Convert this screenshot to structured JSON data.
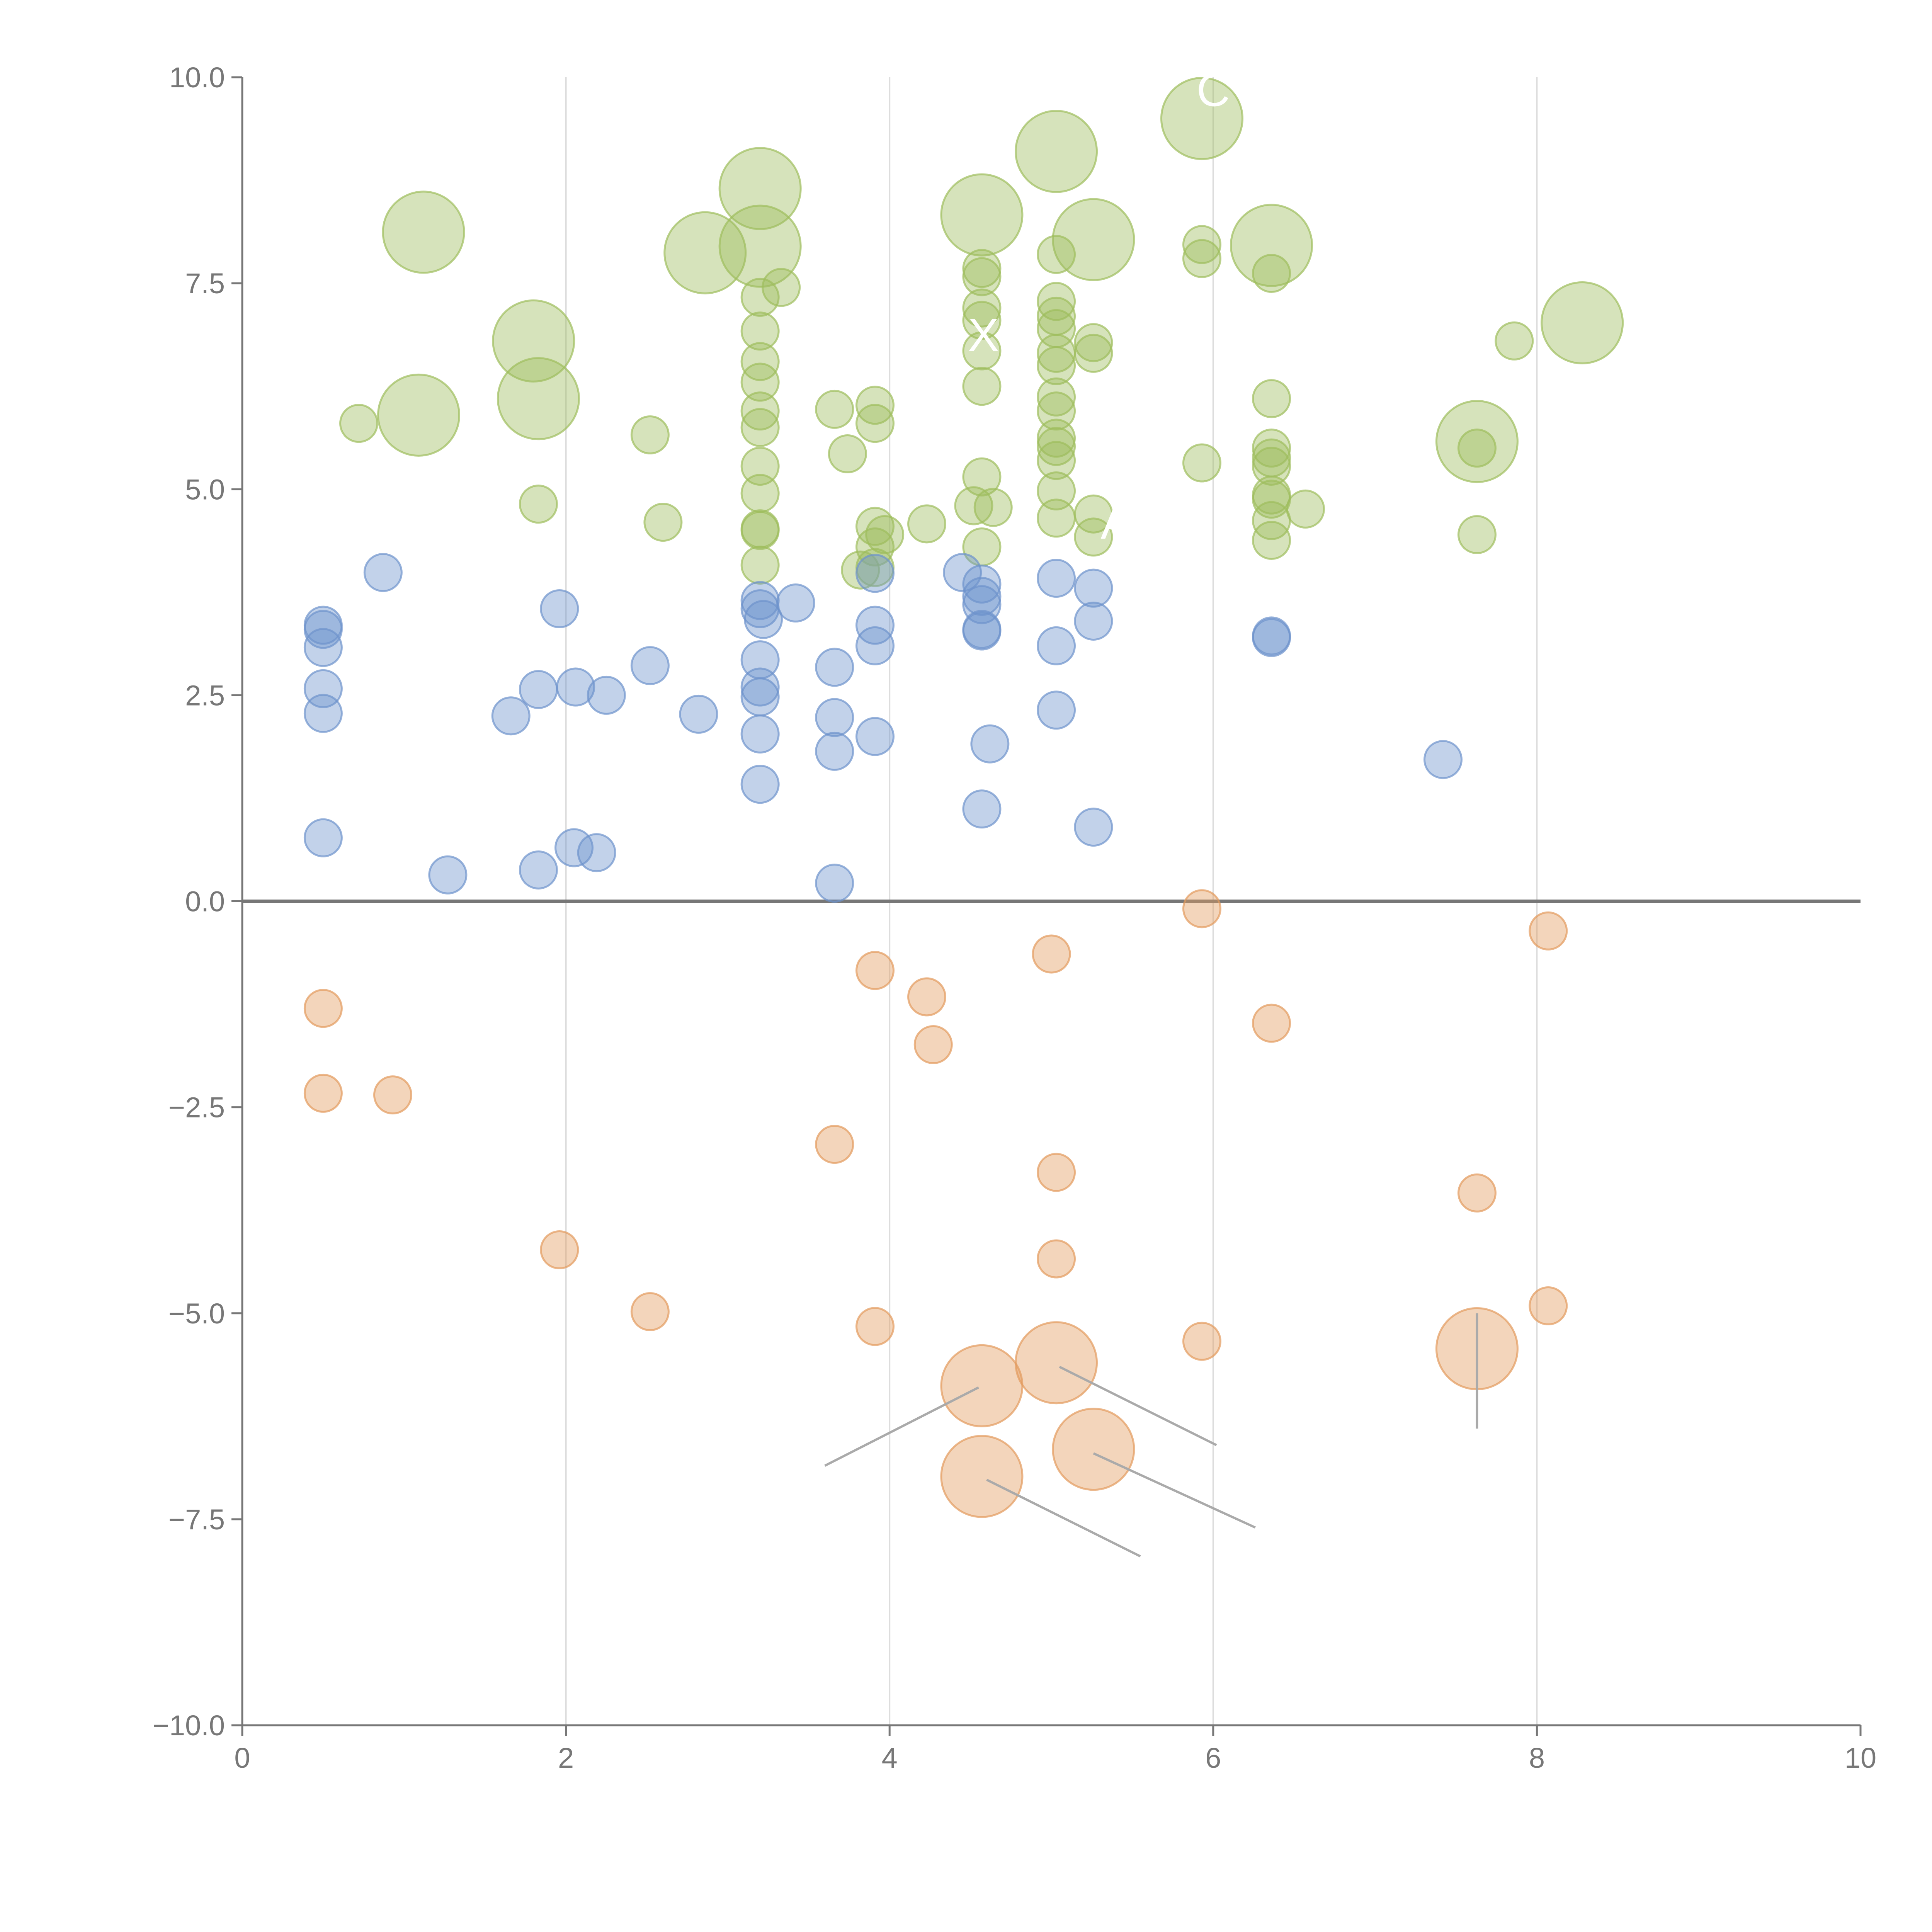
{
  "chart_data": {
    "type": "scatter",
    "title": "",
    "xlabel": "",
    "ylabel": "",
    "xlim": [
      0,
      10
    ],
    "ylim": [
      -10,
      10
    ],
    "grid": "vertical lines at x = 2, 4, 6, 8",
    "x_ticks": [
      "0",
      "2",
      "4",
      "6",
      "8",
      "10"
    ],
    "y_ticks": [
      "10.0",
      "7.5",
      "5.0",
      "2.5",
      "0.0",
      "−2.5",
      "−5.0",
      "−7.5",
      "−10.0"
    ],
    "y_tick_values": [
      10,
      7.5,
      5,
      2.5,
      0,
      -2.5,
      -5,
      -7.5,
      -10
    ],
    "x_tick_values": [
      0,
      2,
      4,
      6,
      8,
      10
    ],
    "reference_line": 0,
    "colors": {
      "green": "#9ebd5c",
      "blue": "#6e93cc",
      "orange": "#e39a5c",
      "axis": "#777777",
      "grid": "#dddddd"
    },
    "series": [
      {
        "name": "high",
        "color": "green",
        "points": [
          [
            1.12,
            8.12,
            3
          ],
          [
            2.86,
            7.87,
            3
          ],
          [
            3.2,
            8.65,
            3
          ],
          [
            3.2,
            7.95,
            3
          ],
          [
            4.57,
            8.33,
            3
          ],
          [
            5.03,
            9.1,
            3
          ],
          [
            5.26,
            8.03,
            3
          ],
          [
            5.93,
            9.5,
            3
          ],
          [
            6.36,
            7.96,
            3
          ],
          [
            8.28,
            7.02,
            3
          ],
          [
            1.8,
            6.8,
            3
          ],
          [
            1.83,
            6.1,
            3
          ],
          [
            1.09,
            5.9,
            3
          ],
          [
            7.63,
            5.58,
            3
          ],
          [
            0.72,
            5.8,
            1
          ],
          [
            1.83,
            4.82,
            1
          ],
          [
            2.52,
            5.66,
            1
          ],
          [
            2.6,
            4.6,
            1
          ],
          [
            3.2,
            7.33,
            1
          ],
          [
            3.33,
            7.45,
            1
          ],
          [
            3.2,
            6.92,
            1
          ],
          [
            3.2,
            6.55,
            1
          ],
          [
            3.2,
            6.3,
            1
          ],
          [
            3.2,
            5.95,
            1
          ],
          [
            3.2,
            5.75,
            1
          ],
          [
            3.2,
            5.28,
            1
          ],
          [
            3.2,
            4.95,
            1
          ],
          [
            3.2,
            4.52,
            1
          ],
          [
            3.2,
            4.5,
            1
          ],
          [
            3.2,
            4.08,
            1
          ],
          [
            3.66,
            5.97,
            1
          ],
          [
            3.74,
            5.43,
            1
          ],
          [
            3.82,
            4.02,
            1
          ],
          [
            3.91,
            6.02,
            1
          ],
          [
            3.91,
            5.8,
            1
          ],
          [
            3.91,
            4.55,
            1
          ],
          [
            3.91,
            4.3,
            1
          ],
          [
            3.97,
            4.45,
            1
          ],
          [
            3.91,
            4.05,
            1
          ],
          [
            4.23,
            4.58,
            1
          ],
          [
            4.57,
            7.68,
            1
          ],
          [
            4.57,
            7.58,
            1
          ],
          [
            4.57,
            7.2,
            1
          ],
          [
            4.57,
            7.05,
            1
          ],
          [
            4.57,
            6.68,
            1
          ],
          [
            4.57,
            6.25,
            1
          ],
          [
            4.57,
            5.15,
            1
          ],
          [
            4.52,
            4.8,
            1
          ],
          [
            4.64,
            4.78,
            1
          ],
          [
            4.57,
            4.3,
            1
          ],
          [
            5.03,
            7.85,
            1
          ],
          [
            5.03,
            7.28,
            1
          ],
          [
            5.03,
            7.1,
            1
          ],
          [
            5.03,
            6.95,
            1
          ],
          [
            5.03,
            6.65,
            1
          ],
          [
            5.03,
            6.5,
            1
          ],
          [
            5.03,
            6.12,
            1
          ],
          [
            5.03,
            5.95,
            1
          ],
          [
            5.03,
            5.62,
            1
          ],
          [
            5.03,
            5.52,
            1
          ],
          [
            5.03,
            5.35,
            1
          ],
          [
            5.03,
            4.98,
            1
          ],
          [
            5.03,
            4.65,
            1
          ],
          [
            5.26,
            6.78,
            1
          ],
          [
            5.26,
            6.65,
            1
          ],
          [
            5.26,
            4.7,
            1
          ],
          [
            5.26,
            4.42,
            1
          ],
          [
            5.93,
            7.97,
            1
          ],
          [
            5.93,
            7.8,
            1
          ],
          [
            5.93,
            5.32,
            1
          ],
          [
            6.36,
            7.62,
            1
          ],
          [
            6.36,
            6.1,
            1
          ],
          [
            6.36,
            5.5,
            1
          ],
          [
            6.36,
            5.38,
            1
          ],
          [
            6.36,
            5.28,
            1
          ],
          [
            6.36,
            4.93,
            1
          ],
          [
            6.36,
            4.88,
            1
          ],
          [
            6.36,
            4.62,
            1
          ],
          [
            6.36,
            4.38,
            1
          ],
          [
            6.57,
            4.76,
            1
          ],
          [
            7.63,
            5.5,
            1
          ],
          [
            7.63,
            4.45,
            1
          ],
          [
            7.86,
            6.8,
            1
          ]
        ]
      },
      {
        "name": "mid",
        "color": "blue",
        "points": [
          [
            0.5,
            3.35,
            1
          ],
          [
            0.5,
            3.3,
            1
          ],
          [
            0.5,
            3.08,
            1
          ],
          [
            0.5,
            2.58,
            1
          ],
          [
            0.5,
            2.28,
            1
          ],
          [
            0.5,
            0.77,
            1
          ],
          [
            0.87,
            3.99,
            1
          ],
          [
            1.27,
            0.32,
            1
          ],
          [
            1.66,
            2.25,
            1
          ],
          [
            1.83,
            2.57,
            1
          ],
          [
            1.83,
            0.38,
            1
          ],
          [
            1.96,
            3.55,
            1
          ],
          [
            2.05,
            0.65,
            1
          ],
          [
            2.06,
            2.6,
            1
          ],
          [
            2.19,
            0.59,
            1
          ],
          [
            2.25,
            2.5,
            1
          ],
          [
            2.52,
            2.86,
            1
          ],
          [
            2.82,
            2.27,
            1
          ],
          [
            3.2,
            3.65,
            1
          ],
          [
            3.2,
            3.55,
            1
          ],
          [
            3.22,
            3.42,
            1
          ],
          [
            3.2,
            2.93,
            1
          ],
          [
            3.2,
            2.6,
            1
          ],
          [
            3.2,
            2.48,
            1
          ],
          [
            3.2,
            2.03,
            1
          ],
          [
            3.2,
            1.42,
            1
          ],
          [
            3.42,
            3.62,
            1
          ],
          [
            3.66,
            2.84,
            1
          ],
          [
            3.66,
            2.23,
            1
          ],
          [
            3.66,
            1.82,
            1
          ],
          [
            3.66,
            0.22,
            1
          ],
          [
            3.91,
            3.98,
            1
          ],
          [
            3.91,
            3.35,
            1
          ],
          [
            3.91,
            3.1,
            1
          ],
          [
            3.91,
            2.0,
            1
          ],
          [
            4.45,
            3.99,
            1
          ],
          [
            4.57,
            3.85,
            1
          ],
          [
            4.57,
            3.7,
            1
          ],
          [
            4.57,
            3.6,
            1
          ],
          [
            4.57,
            3.3,
            1
          ],
          [
            4.57,
            3.28,
            1
          ],
          [
            4.62,
            1.91,
            1
          ],
          [
            4.57,
            1.12,
            1
          ],
          [
            5.03,
            3.92,
            1
          ],
          [
            5.03,
            3.1,
            1
          ],
          [
            5.03,
            2.32,
            1
          ],
          [
            5.26,
            3.8,
            1
          ],
          [
            5.26,
            3.4,
            1
          ],
          [
            5.26,
            0.9,
            1
          ],
          [
            6.36,
            3.22,
            1
          ],
          [
            6.36,
            3.2,
            1
          ],
          [
            7.42,
            1.72,
            1
          ]
        ]
      },
      {
        "name": "low",
        "color": "orange",
        "points": [
          [
            0.5,
            -1.3,
            1
          ],
          [
            0.5,
            -2.33,
            1
          ],
          [
            0.93,
            -2.35,
            1
          ],
          [
            1.96,
            -4.23,
            1
          ],
          [
            2.52,
            -4.98,
            1
          ],
          [
            3.66,
            -2.95,
            1
          ],
          [
            3.91,
            -0.84,
            1
          ],
          [
            3.91,
            -5.16,
            1
          ],
          [
            4.23,
            -1.16,
            1
          ],
          [
            4.27,
            -1.74,
            1
          ],
          [
            5.0,
            -0.64,
            1
          ],
          [
            5.03,
            -3.29,
            1
          ],
          [
            5.03,
            -4.34,
            1
          ],
          [
            5.93,
            -0.09,
            1
          ],
          [
            5.93,
            -5.34,
            1
          ],
          [
            6.36,
            -1.48,
            1
          ],
          [
            7.63,
            -3.54,
            1
          ],
          [
            8.07,
            -0.36,
            1
          ],
          [
            8.07,
            -4.91,
            1
          ],
          [
            4.57,
            -5.88,
            3
          ],
          [
            5.03,
            -5.6,
            3
          ],
          [
            5.26,
            -6.65,
            3
          ],
          [
            4.57,
            -6.98,
            3
          ],
          [
            7.63,
            -5.43,
            3
          ]
        ]
      }
    ],
    "annotations": [
      {
        "text": "C",
        "x": 6.0,
        "y": 9.65,
        "color": "#ffffff"
      },
      {
        "text": "X",
        "x": 4.58,
        "y": 6.68,
        "color": "#ffffff"
      },
      {
        "text": "A",
        "x": 5.4,
        "y": 4.4,
        "color": "#ffffff"
      }
    ],
    "leader_lines": [
      {
        "from": [
          4.55,
          -5.9
        ],
        "to": [
          3.6,
          -6.85
        ]
      },
      {
        "from": [
          5.05,
          -5.65
        ],
        "to": [
          6.02,
          -6.6
        ]
      },
      {
        "from": [
          5.26,
          -6.7
        ],
        "to": [
          6.26,
          -7.6
        ]
      },
      {
        "from": [
          4.6,
          -7.02
        ],
        "to": [
          5.55,
          -7.95
        ]
      },
      {
        "from": [
          7.63,
          -5.0
        ],
        "to": [
          7.63,
          -6.4
        ]
      }
    ]
  }
}
